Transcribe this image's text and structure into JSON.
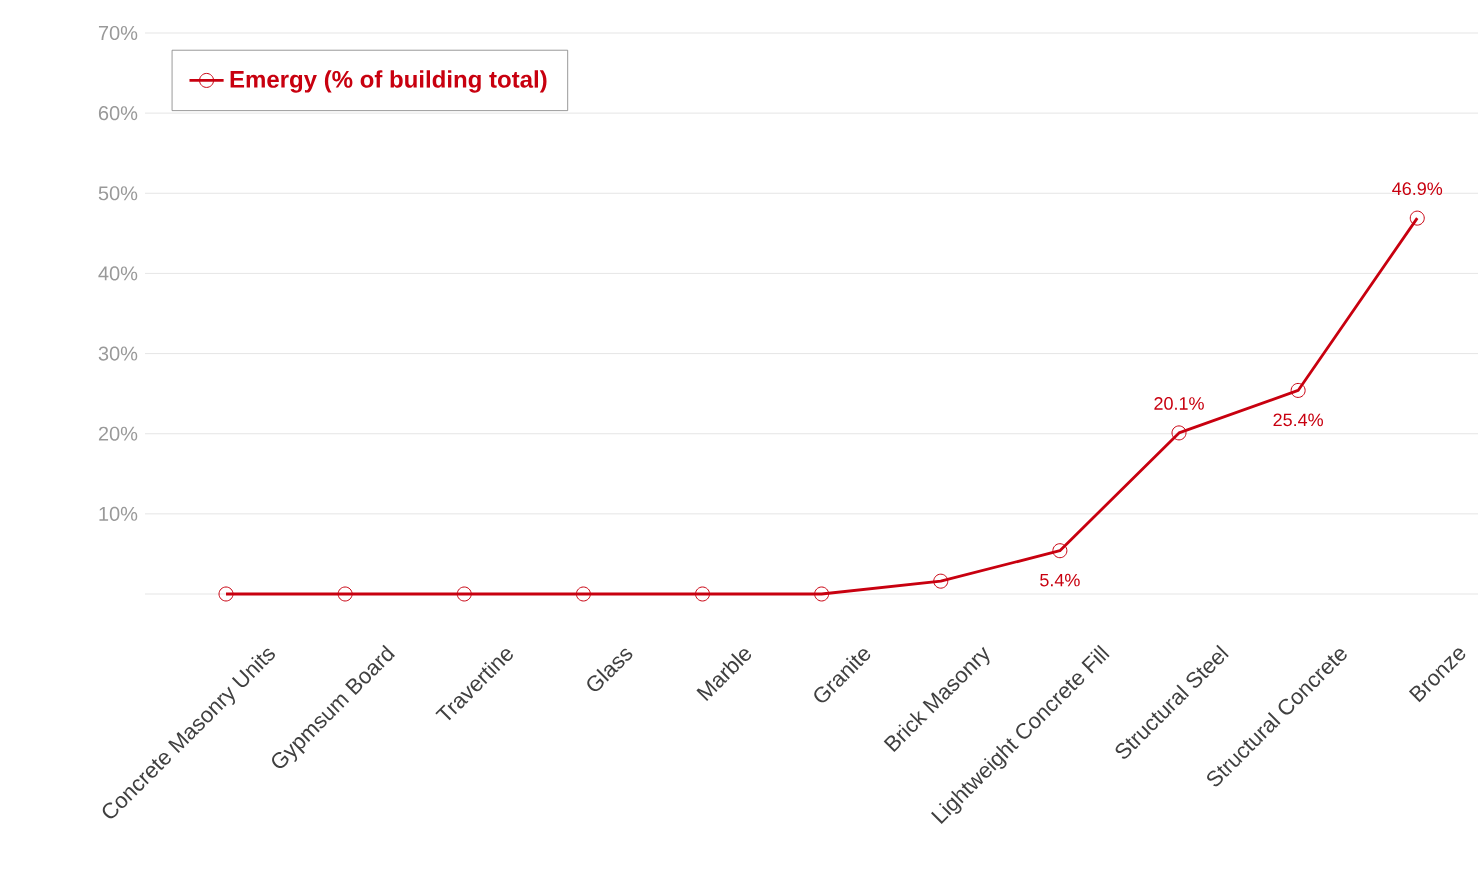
{
  "chart_data": {
    "type": "line",
    "categories": [
      "Concrete Masonry Units",
      "Gypmsum Board",
      "Travertine",
      "Glass",
      "Marble",
      "Granite",
      "Brick Masonry",
      "Lightweight Concrete Fill",
      "Structural Steel",
      "Structural Concrete",
      "Bronze"
    ],
    "series": [
      {
        "name": "Emergy (% of building total)",
        "color": "#c8000f",
        "values": [
          0,
          0,
          0,
          0,
          0,
          0,
          1.6,
          5.4,
          20.1,
          25.4,
          46.9
        ],
        "value_labels": [
          null,
          null,
          null,
          null,
          null,
          null,
          null,
          "5.4%",
          "20.1%",
          "25.4%",
          "46.9%"
        ]
      }
    ],
    "ylim": [
      0,
      70
    ],
    "yticks": [
      {
        "value": 0,
        "label": null
      },
      {
        "value": 10,
        "label": "10%"
      },
      {
        "value": 20,
        "label": "20%"
      },
      {
        "value": 30,
        "label": "30%"
      },
      {
        "value": 40,
        "label": "40%"
      },
      {
        "value": 50,
        "label": "50%"
      },
      {
        "value": 60,
        "label": "60%"
      },
      {
        "value": 70,
        "label": "70%"
      }
    ],
    "grid": "y",
    "legend": "top left",
    "marker": "circle",
    "line_style": "solid"
  }
}
